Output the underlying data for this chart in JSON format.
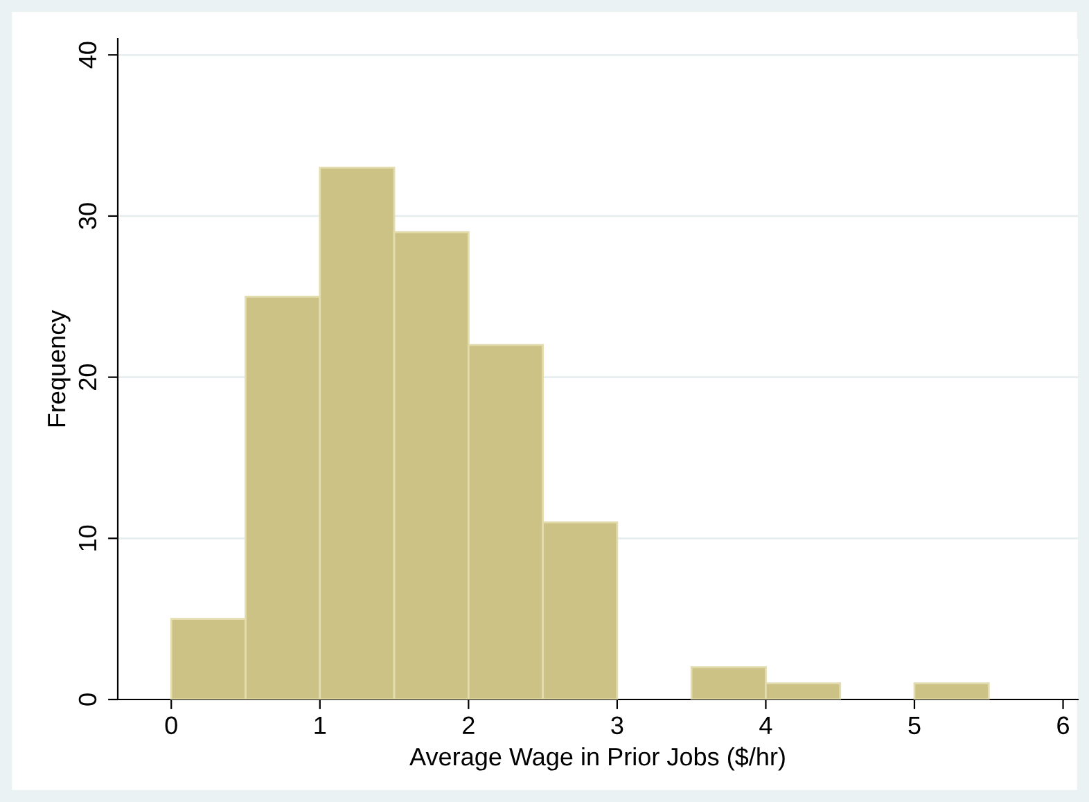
{
  "chart_data": {
    "type": "histogram",
    "xlabel": "Average Wage in Prior Jobs ($/hr)",
    "ylabel": "Frequency",
    "bins": [
      0,
      0.5,
      1,
      1.5,
      2,
      2.5,
      3,
      3.5,
      4,
      4.5,
      5,
      5.5
    ],
    "values": [
      5,
      25,
      33,
      29,
      22,
      11,
      0,
      2,
      1,
      0,
      1
    ],
    "color": "#ccc285",
    "xlim": [
      -0.36,
      6.1
    ],
    "xticks": [
      0,
      1,
      2,
      3,
      4,
      5,
      6
    ],
    "ylim": [
      0,
      41
    ],
    "yticks": [
      0,
      10,
      20,
      30,
      40
    ],
    "grid": "y",
    "legend": false
  }
}
